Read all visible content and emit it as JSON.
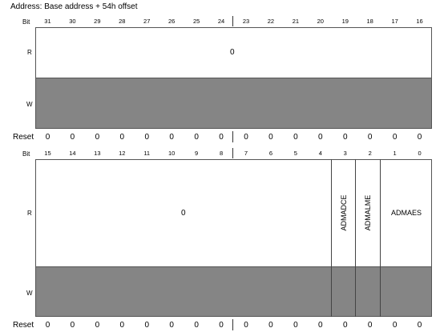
{
  "address_label": "Address: Base address + 54h offset",
  "bit_label": "Bit",
  "read_label": "R",
  "write_label": "W",
  "reset_label": "Reset",
  "upper": {
    "bits": [
      "31",
      "30",
      "29",
      "28",
      "27",
      "26",
      "25",
      "24",
      "23",
      "22",
      "21",
      "20",
      "19",
      "18",
      "17",
      "16"
    ],
    "read_value": "0",
    "reset": [
      "0",
      "0",
      "0",
      "0",
      "0",
      "0",
      "0",
      "0",
      "0",
      "0",
      "0",
      "0",
      "0",
      "0",
      "0",
      "0"
    ]
  },
  "lower": {
    "bits": [
      "15",
      "14",
      "13",
      "12",
      "11",
      "10",
      "9",
      "8",
      "7",
      "6",
      "5",
      "4",
      "3",
      "2",
      "1",
      "0"
    ],
    "read_value": "0",
    "fields": [
      "ADMADCE",
      "ADMALME",
      "ADMAES"
    ],
    "reset": [
      "0",
      "0",
      "0",
      "0",
      "0",
      "0",
      "0",
      "0",
      "0",
      "0",
      "0",
      "0",
      "0",
      "0",
      "0",
      "0"
    ]
  },
  "colors": {
    "write_fill": "#858585",
    "read_fill": "#ffffff",
    "border": "#555555"
  }
}
